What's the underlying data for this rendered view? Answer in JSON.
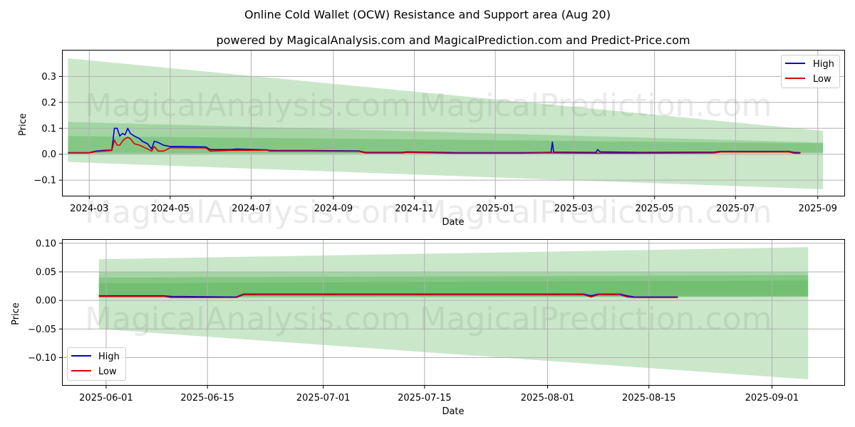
{
  "title": "Online Cold Wallet (OCW) Resistance and Support area (Aug 20)",
  "subtitle": "powered by MagicalAnalysis.com and MagicalPrediction.com and Predict-Price.com",
  "watermarks": [
    "MagicalAnalysis.com",
    "MagicalPrediction.com"
  ],
  "colors": {
    "high": "#0000cc",
    "low": "#dd0000",
    "band": "#2ca02c"
  },
  "chart_data": [
    {
      "type": "line",
      "xlabel": "Date",
      "ylabel": "Price",
      "x_domain": [
        "2024-02-10",
        "2025-09-21"
      ],
      "ylim": [
        -0.16,
        0.4
      ],
      "x_ticks": [
        {
          "date": "2024-03-01",
          "label": "2024-03"
        },
        {
          "date": "2024-05-01",
          "label": "2024-05"
        },
        {
          "date": "2024-07-01",
          "label": "2024-07"
        },
        {
          "date": "2024-09-01",
          "label": "2024-09"
        },
        {
          "date": "2024-11-01",
          "label": "2024-11"
        },
        {
          "date": "2025-01-01",
          "label": "2025-01"
        },
        {
          "date": "2025-03-01",
          "label": "2025-03"
        },
        {
          "date": "2025-05-01",
          "label": "2025-05"
        },
        {
          "date": "2025-07-01",
          "label": "2025-07"
        },
        {
          "date": "2025-09-01",
          "label": "2025-09"
        }
      ],
      "y_ticks": [
        {
          "v": 0.3,
          "label": "0.3"
        },
        {
          "v": 0.2,
          "label": "0.2"
        },
        {
          "v": 0.1,
          "label": "0.1"
        },
        {
          "v": 0.0,
          "label": "0.0"
        },
        {
          "v": -0.1,
          "label": "−0.1"
        }
      ],
      "legend": "top-right",
      "bands": [
        {
          "x0": "2024-02-14",
          "x1": "2025-09-05",
          "y0_start": -0.03,
          "y1_start": 0.37,
          "y0_end": -0.135,
          "y1_end": 0.09,
          "opacity": 0.25
        },
        {
          "x0": "2024-02-14",
          "x1": "2025-09-05",
          "y0_start": 0.0,
          "y1_start": 0.125,
          "y0_end": 0.004,
          "y1_end": 0.045,
          "opacity": 0.25
        },
        {
          "x0": "2024-02-14",
          "x1": "2025-09-05",
          "y0_start": 0.004,
          "y1_start": 0.07,
          "y0_end": 0.006,
          "y1_end": 0.042,
          "opacity": 0.25
        }
      ],
      "series": [
        {
          "name": "High",
          "x": [
            "2024-02-14",
            "2024-03-01",
            "2024-03-06",
            "2024-03-12",
            "2024-03-18",
            "2024-03-20",
            "2024-03-22",
            "2024-03-24",
            "2024-03-26",
            "2024-03-28",
            "2024-03-30",
            "2024-04-01",
            "2024-04-04",
            "2024-04-08",
            "2024-04-10",
            "2024-04-14",
            "2024-04-17",
            "2024-04-19",
            "2024-04-22",
            "2024-04-26",
            "2024-05-01",
            "2024-05-10",
            "2024-05-28",
            "2024-05-31",
            "2024-06-15",
            "2024-06-20",
            "2024-07-13",
            "2024-07-15",
            "2024-07-20",
            "2024-08-15",
            "2024-09-20",
            "2024-09-25",
            "2024-10-23",
            "2024-10-26",
            "2024-12-01",
            "2025-01-20",
            "2025-02-10",
            "2025-02-12",
            "2025-02-13",
            "2025-02-14",
            "2025-03-15",
            "2025-03-18",
            "2025-03-19",
            "2025-03-21",
            "2025-04-20",
            "2025-06-15",
            "2025-06-20",
            "2025-08-10",
            "2025-08-14",
            "2025-08-19"
          ],
          "values": [
            0.006,
            0.006,
            0.012,
            0.015,
            0.016,
            0.1,
            0.1,
            0.07,
            0.08,
            0.075,
            0.1,
            0.08,
            0.07,
            0.06,
            0.05,
            0.04,
            0.02,
            0.05,
            0.045,
            0.035,
            0.03,
            0.03,
            0.028,
            0.018,
            0.018,
            0.02,
            0.017,
            0.015,
            0.014,
            0.014,
            0.013,
            0.007,
            0.007,
            0.009,
            0.006,
            0.006,
            0.007,
            0.007,
            0.047,
            0.008,
            0.007,
            0.007,
            0.018,
            0.009,
            0.007,
            0.008,
            0.011,
            0.011,
            0.007,
            0.006
          ]
        },
        {
          "name": "Low",
          "x": [
            "2024-02-14",
            "2024-03-01",
            "2024-03-06",
            "2024-03-12",
            "2024-03-18",
            "2024-03-20",
            "2024-03-22",
            "2024-03-24",
            "2024-03-26",
            "2024-03-28",
            "2024-03-30",
            "2024-04-01",
            "2024-04-04",
            "2024-04-08",
            "2024-04-10",
            "2024-04-14",
            "2024-04-17",
            "2024-04-19",
            "2024-04-22",
            "2024-04-26",
            "2024-05-01",
            "2024-05-10",
            "2024-05-28",
            "2024-05-31",
            "2024-06-15",
            "2024-06-20",
            "2024-07-13",
            "2024-07-15",
            "2024-07-20",
            "2024-08-15",
            "2024-09-20",
            "2024-09-25",
            "2024-10-23",
            "2024-10-26",
            "2024-12-01",
            "2025-01-20",
            "2025-02-10",
            "2025-02-14",
            "2025-03-15",
            "2025-03-21",
            "2025-04-20",
            "2025-06-15",
            "2025-06-20",
            "2025-08-10",
            "2025-08-14",
            "2025-08-19"
          ],
          "values": [
            0.005,
            0.005,
            0.01,
            0.012,
            0.014,
            0.055,
            0.035,
            0.035,
            0.05,
            0.06,
            0.065,
            0.06,
            0.04,
            0.035,
            0.03,
            0.02,
            0.012,
            0.03,
            0.012,
            0.012,
            0.025,
            0.025,
            0.024,
            0.012,
            0.015,
            0.015,
            0.016,
            0.012,
            0.012,
            0.012,
            0.011,
            0.005,
            0.005,
            0.007,
            0.004,
            0.004,
            0.005,
            0.005,
            0.004,
            0.004,
            0.004,
            0.005,
            0.009,
            0.009,
            0.004,
            0.004
          ]
        }
      ]
    },
    {
      "type": "line",
      "xlabel": "Date",
      "ylabel": "Price",
      "x_domain": [
        "2025-05-26",
        "2025-09-11"
      ],
      "ylim": [
        -0.148,
        0.106
      ],
      "x_ticks": [
        {
          "date": "2025-06-01",
          "label": "2025-06-01"
        },
        {
          "date": "2025-06-15",
          "label": "2025-06-15"
        },
        {
          "date": "2025-07-01",
          "label": "2025-07-01"
        },
        {
          "date": "2025-07-15",
          "label": "2025-07-15"
        },
        {
          "date": "2025-08-01",
          "label": "2025-08-01"
        },
        {
          "date": "2025-08-15",
          "label": "2025-08-15"
        },
        {
          "date": "2025-09-01",
          "label": "2025-09-01"
        }
      ],
      "y_ticks": [
        {
          "v": 0.1,
          "label": "0.10"
        },
        {
          "v": 0.05,
          "label": "0.05"
        },
        {
          "v": 0.0,
          "label": "0.00"
        },
        {
          "v": -0.05,
          "label": "−0.05"
        },
        {
          "v": -0.1,
          "label": "−0.10"
        }
      ],
      "legend": "bottom-left",
      "bands": [
        {
          "x0": "2025-05-31",
          "x1": "2025-09-06",
          "y0_start": -0.05,
          "y1_start": 0.072,
          "y0_end": -0.138,
          "y1_end": 0.093,
          "opacity": 0.25
        },
        {
          "x0": "2025-05-31",
          "x1": "2025-09-06",
          "y0_start": 0.004,
          "y1_start": 0.05,
          "y0_end": 0.006,
          "y1_end": 0.05,
          "opacity": 0.25
        },
        {
          "x0": "2025-05-31",
          "x1": "2025-09-06",
          "y0_start": 0.006,
          "y1_start": 0.04,
          "y0_end": 0.007,
          "y1_end": 0.044,
          "opacity": 0.25
        },
        {
          "x0": "2025-05-31",
          "x1": "2025-09-06",
          "y0_start": 0.008,
          "y1_start": 0.03,
          "y0_end": 0.008,
          "y1_end": 0.035,
          "opacity": 0.2
        }
      ],
      "series": [
        {
          "name": "High",
          "x": [
            "2025-05-31",
            "2025-06-09",
            "2025-06-10",
            "2025-06-19",
            "2025-06-20",
            "2025-07-26",
            "2025-08-06",
            "2025-08-07",
            "2025-08-08",
            "2025-08-11",
            "2025-08-12",
            "2025-08-13",
            "2025-08-15",
            "2025-08-19"
          ],
          "values": [
            0.008,
            0.008,
            0.007,
            0.006,
            0.011,
            0.011,
            0.011,
            0.008,
            0.011,
            0.011,
            0.008,
            0.006,
            0.006,
            0.006
          ]
        },
        {
          "name": "Low",
          "x": [
            "2025-05-31",
            "2025-06-09",
            "2025-06-10",
            "2025-06-19",
            "2025-06-20",
            "2025-07-26",
            "2025-08-06",
            "2025-08-07",
            "2025-08-08",
            "2025-08-11",
            "2025-08-12",
            "2025-08-13",
            "2025-08-15",
            "2025-08-19"
          ],
          "values": [
            0.007,
            0.007,
            0.005,
            0.005,
            0.01,
            0.01,
            0.01,
            0.006,
            0.01,
            0.01,
            0.006,
            0.005,
            0.005,
            0.005
          ]
        }
      ]
    }
  ]
}
